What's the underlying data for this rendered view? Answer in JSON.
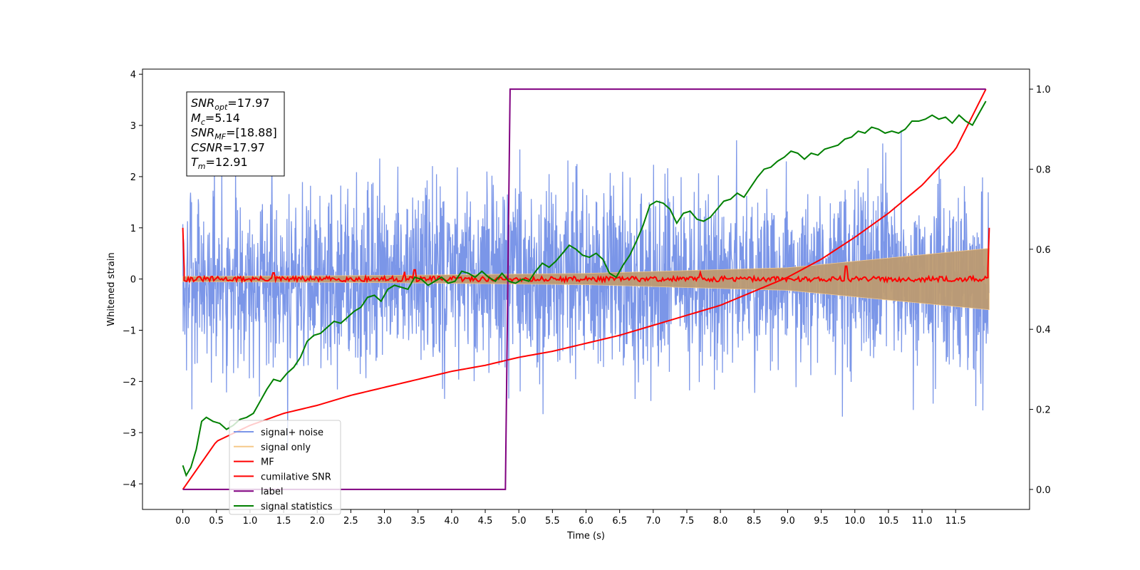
{
  "chart_data": {
    "type": "line",
    "xlabel": "Time (s)",
    "ylabel_left": "Whitened strain",
    "ylabel_right": "",
    "xlim": [
      -0.6,
      12.6
    ],
    "ylim_left": [
      -4.5,
      4.1
    ],
    "ylim_right": [
      -0.05,
      1.05
    ],
    "x_ticks": [
      0.0,
      0.5,
      1.0,
      1.5,
      2.0,
      2.5,
      3.0,
      3.5,
      4.0,
      4.5,
      5.0,
      5.5,
      6.0,
      6.5,
      7.0,
      7.5,
      8.0,
      8.5,
      9.0,
      9.5,
      10.0,
      10.5,
      11.0,
      11.5
    ],
    "x_tick_labels": [
      "0.0",
      "0.5",
      "1.0",
      "1.5",
      "2.0",
      "2.5",
      "3.0",
      "3.5",
      "4.0",
      "4.5",
      "5.0",
      "5.5",
      "6.0",
      "6.5",
      "7.0",
      "7.5",
      "8.0",
      "8.5",
      "9.0",
      "9.5",
      "10.0",
      "10.5",
      "11.0",
      "11.5"
    ],
    "y_left_ticks": [
      -4,
      -3,
      -2,
      -1,
      0,
      1,
      2,
      3,
      4
    ],
    "y_left_tick_labels": [
      "−4",
      "−3",
      "−2",
      "−1",
      "0",
      "1",
      "2",
      "3",
      "4"
    ],
    "y_right_ticks": [
      0.0,
      0.2,
      0.4,
      0.6,
      0.8,
      1.0
    ],
    "y_right_tick_labels": [
      "0.0",
      "0.2",
      "0.4",
      "0.6",
      "0.8",
      "1.0"
    ],
    "grid": false,
    "legend_position": "lower-left",
    "info_box": [
      {
        "main": "SNR",
        "sub": "opt",
        "rest": "=17.97"
      },
      {
        "main": "M",
        "sub": "c",
        "rest": "=5.14"
      },
      {
        "main": "SNR",
        "sub": "MF",
        "rest": "=[18.88]"
      },
      {
        "main": "CSNR",
        "sub": "",
        "rest": "=17.97"
      },
      {
        "main": "T",
        "sub": "m",
        "rest": "=12.91"
      }
    ],
    "series": [
      {
        "name": "signal+ noise",
        "color": "#7b96e8",
        "axis": "left",
        "kind": "noise",
        "x_range": [
          0.0,
          12.0
        ],
        "amplitude_approx": 3.7,
        "seed": 7
      },
      {
        "name": "signal only",
        "color": "#f6c98a",
        "axis": "left",
        "kind": "chirp",
        "x_range": [
          0.0,
          12.0
        ],
        "envelope": {
          "x": [
            0.0,
            3.0,
            6.0,
            9.0,
            12.0
          ],
          "y": [
            0.05,
            0.07,
            0.11,
            0.22,
            0.6
          ]
        },
        "fill_color": "#bd9b72"
      },
      {
        "name": "MF",
        "color": "#ff0000",
        "axis": "left",
        "kind": "mf",
        "x_range": [
          0.0,
          12.0
        ],
        "start_value": 1.0,
        "end_value": 1.0,
        "jitter": 0.05,
        "spikes": [
          {
            "x": 1.35,
            "y": 0.12
          },
          {
            "x": 3.3,
            "y": 0.14
          },
          {
            "x": 3.45,
            "y": 0.18
          },
          {
            "x": 9.87,
            "y": 0.25
          },
          {
            "x": 7.7,
            "y": 0.13
          }
        ]
      },
      {
        "name": "cumilative SNR",
        "color": "#ff0000",
        "axis": "right",
        "x": [
          0.0,
          0.5,
          1.0,
          1.5,
          2.0,
          2.5,
          3.0,
          3.5,
          4.0,
          4.5,
          5.0,
          5.5,
          6.0,
          6.5,
          7.0,
          7.5,
          8.0,
          8.5,
          9.0,
          9.5,
          10.0,
          10.5,
          11.0,
          11.5,
          11.95
        ],
        "y": [
          0.0,
          0.12,
          0.16,
          0.19,
          0.21,
          0.235,
          0.255,
          0.275,
          0.295,
          0.31,
          0.33,
          0.345,
          0.365,
          0.385,
          0.41,
          0.435,
          0.46,
          0.495,
          0.53,
          0.575,
          0.63,
          0.69,
          0.76,
          0.85,
          1.0
        ]
      },
      {
        "name": "label",
        "color": "#800080",
        "axis": "right",
        "x": [
          0.0,
          4.8,
          4.87,
          11.95
        ],
        "y": [
          0.0,
          0.0,
          1.0,
          1.0
        ]
      },
      {
        "name": "signal statistics",
        "color": "#008000",
        "axis": "right",
        "x": [
          0.0,
          0.05,
          0.12,
          0.2,
          0.28,
          0.35,
          0.45,
          0.55,
          0.65,
          0.75,
          0.85,
          0.95,
          1.05,
          1.15,
          1.25,
          1.35,
          1.45,
          1.55,
          1.65,
          1.75,
          1.85,
          1.95,
          2.05,
          2.15,
          2.25,
          2.35,
          2.45,
          2.55,
          2.65,
          2.75,
          2.85,
          2.95,
          3.05,
          3.15,
          3.25,
          3.35,
          3.45,
          3.55,
          3.65,
          3.75,
          3.85,
          3.95,
          4.05,
          4.15,
          4.25,
          4.35,
          4.45,
          4.55,
          4.65,
          4.75,
          4.85,
          4.95,
          5.05,
          5.15,
          5.25,
          5.35,
          5.45,
          5.55,
          5.65,
          5.75,
          5.85,
          5.95,
          6.05,
          6.15,
          6.25,
          6.35,
          6.45,
          6.55,
          6.65,
          6.75,
          6.85,
          6.95,
          7.05,
          7.15,
          7.25,
          7.35,
          7.45,
          7.55,
          7.65,
          7.75,
          7.85,
          7.95,
          8.05,
          8.15,
          8.25,
          8.35,
          8.45,
          8.55,
          8.65,
          8.75,
          8.85,
          8.95,
          9.05,
          9.15,
          9.25,
          9.35,
          9.45,
          9.55,
          9.65,
          9.75,
          9.85,
          9.95,
          10.05,
          10.15,
          10.25,
          10.35,
          10.45,
          10.55,
          10.65,
          10.75,
          10.85,
          10.95,
          11.05,
          11.15,
          11.25,
          11.35,
          11.45,
          11.55,
          11.65,
          11.75,
          11.85,
          11.95
        ],
        "y": [
          0.06,
          0.035,
          0.055,
          0.1,
          0.17,
          0.18,
          0.17,
          0.165,
          0.15,
          0.16,
          0.175,
          0.18,
          0.19,
          0.22,
          0.25,
          0.275,
          0.27,
          0.29,
          0.305,
          0.33,
          0.37,
          0.385,
          0.39,
          0.405,
          0.42,
          0.415,
          0.43,
          0.445,
          0.455,
          0.48,
          0.485,
          0.47,
          0.5,
          0.51,
          0.505,
          0.5,
          0.53,
          0.525,
          0.51,
          0.52,
          0.53,
          0.515,
          0.52,
          0.545,
          0.54,
          0.53,
          0.545,
          0.53,
          0.52,
          0.54,
          0.52,
          0.515,
          0.525,
          0.52,
          0.545,
          0.565,
          0.555,
          0.57,
          0.59,
          0.61,
          0.6,
          0.585,
          0.58,
          0.59,
          0.575,
          0.54,
          0.53,
          0.56,
          0.585,
          0.62,
          0.66,
          0.71,
          0.72,
          0.715,
          0.7,
          0.665,
          0.69,
          0.695,
          0.675,
          0.67,
          0.68,
          0.7,
          0.72,
          0.725,
          0.74,
          0.73,
          0.755,
          0.78,
          0.8,
          0.805,
          0.82,
          0.83,
          0.845,
          0.84,
          0.825,
          0.84,
          0.835,
          0.85,
          0.855,
          0.86,
          0.875,
          0.88,
          0.895,
          0.89,
          0.905,
          0.9,
          0.89,
          0.895,
          0.89,
          0.9,
          0.92,
          0.92,
          0.925,
          0.935,
          0.925,
          0.93,
          0.915,
          0.935,
          0.92,
          0.91,
          0.94,
          0.97
        ]
      }
    ]
  }
}
